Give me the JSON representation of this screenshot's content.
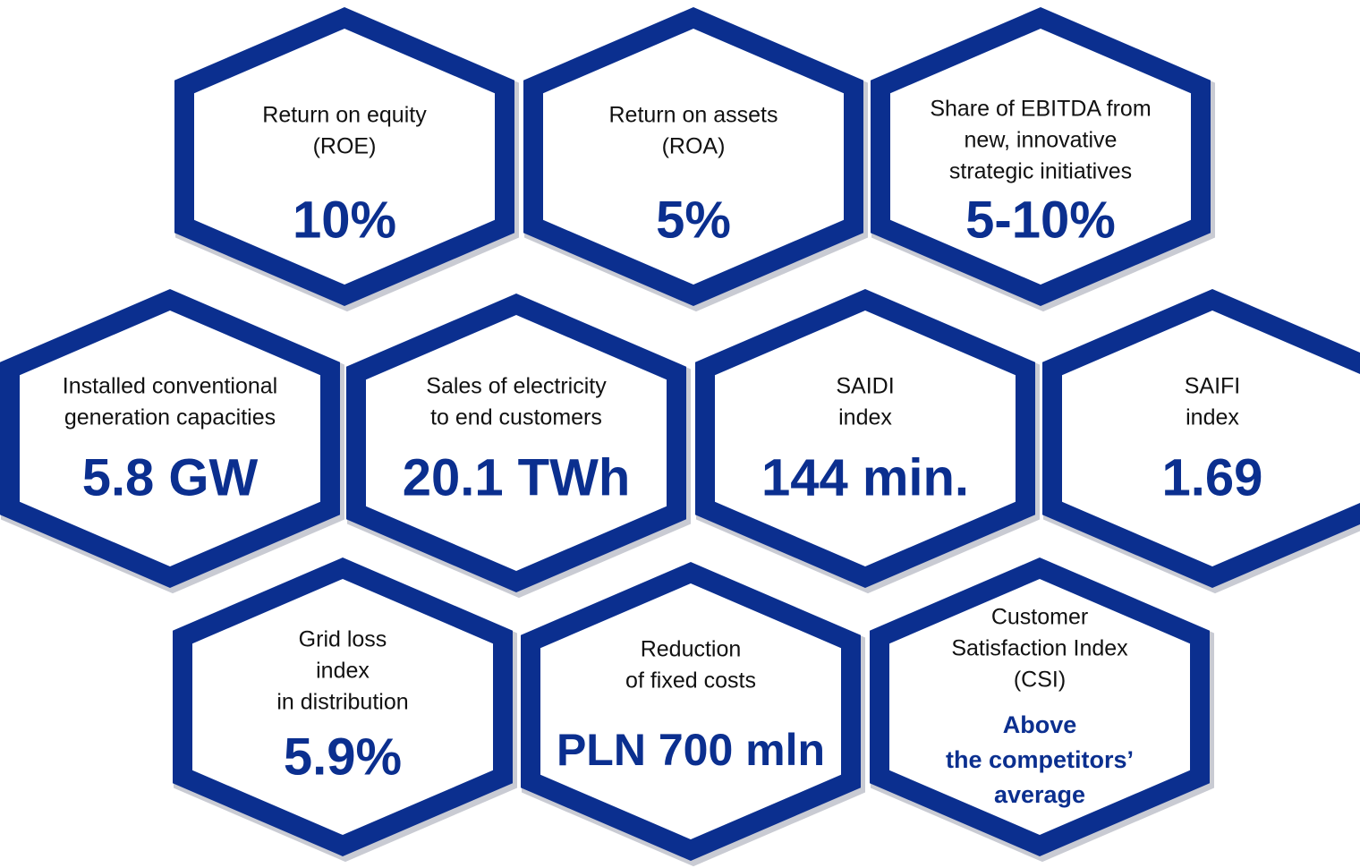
{
  "hexagons": [
    {
      "label": [
        "Return on equity",
        "(ROE)"
      ],
      "value": [
        "10%"
      ]
    },
    {
      "label": [
        "Return on assets",
        "(ROA)"
      ],
      "value": [
        "5%"
      ]
    },
    {
      "label": [
        "Share of EBITDA from",
        "new, innovative",
        "strategic initiatives"
      ],
      "value": [
        "5-10%"
      ]
    },
    {
      "label": [
        "Installed conventional",
        "generation capacities"
      ],
      "value": [
        "5.8 GW"
      ]
    },
    {
      "label": [
        "Sales of electricity",
        "to end customers"
      ],
      "value": [
        "20.1 TWh"
      ]
    },
    {
      "label": [
        "SAIDI",
        "index"
      ],
      "value": [
        "144 min."
      ]
    },
    {
      "label": [
        "SAIFI",
        "index"
      ],
      "value": [
        "1.69"
      ]
    },
    {
      "label": [
        "Grid loss",
        "index",
        "in distribution"
      ],
      "value": [
        "5.9%"
      ]
    },
    {
      "label": [
        "Reduction",
        "of fixed costs"
      ],
      "value": [
        "PLN 700 mln"
      ]
    },
    {
      "label": [
        "Customer",
        "Satisfaction Index",
        "(CSI)"
      ],
      "value": [
        "Above",
        "the competitors’",
        "average"
      ]
    }
  ]
}
